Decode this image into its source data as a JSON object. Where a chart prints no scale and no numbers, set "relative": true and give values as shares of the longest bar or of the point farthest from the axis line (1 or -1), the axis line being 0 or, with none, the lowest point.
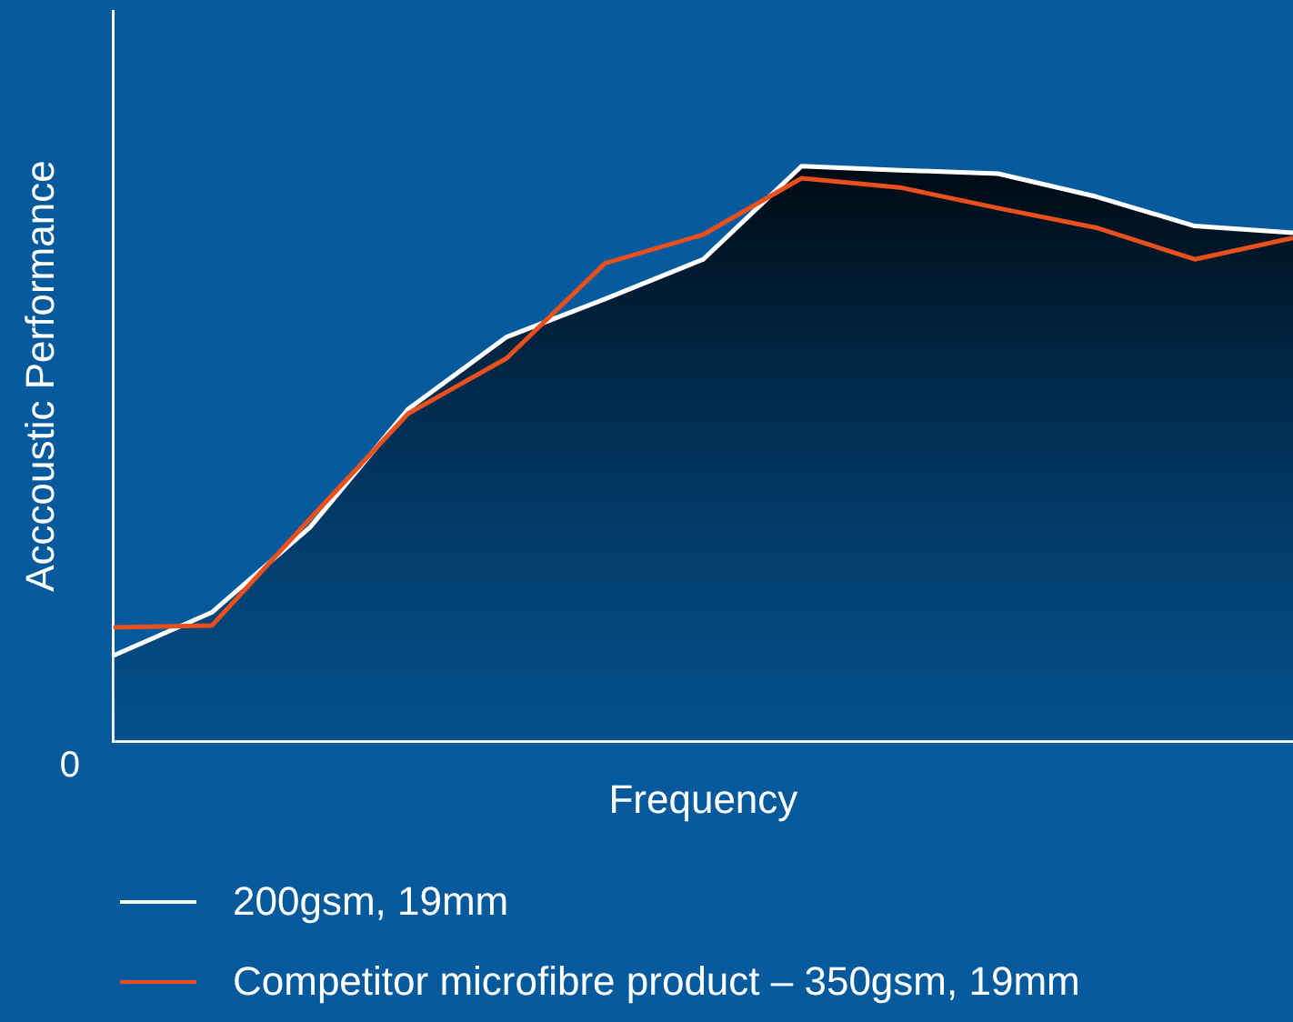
{
  "chart_data": {
    "type": "line",
    "relative": true,
    "xlabel": "Frequency",
    "ylabel": "Acccoustic Performance",
    "annotations": [
      "0"
    ],
    "legend": "bottom",
    "grid": false,
    "marker": "none",
    "categories": [
      null,
      null,
      null,
      null,
      null,
      null,
      null,
      null,
      null,
      null,
      null,
      null,
      null
    ],
    "series": [
      {
        "name": "200gsm, 19mm",
        "type": "area",
        "color": "#ffffff",
        "values": [
          0.149,
          0.224,
          0.372,
          0.578,
          0.703,
          0.769,
          0.838,
          1,
          0.993,
          0.987,
          0.947,
          0.896,
          0.884
        ]
      },
      {
        "name": "Competitor microfibre product – 350gsm, 19mm",
        "type": "line",
        "color": "#e8501e",
        "values": [
          0.198,
          0.201,
          0.387,
          0.57,
          0.666,
          0.831,
          0.881,
          0.979,
          0.963,
          0.927,
          0.893,
          0.838,
          0.875
        ]
      }
    ]
  }
}
